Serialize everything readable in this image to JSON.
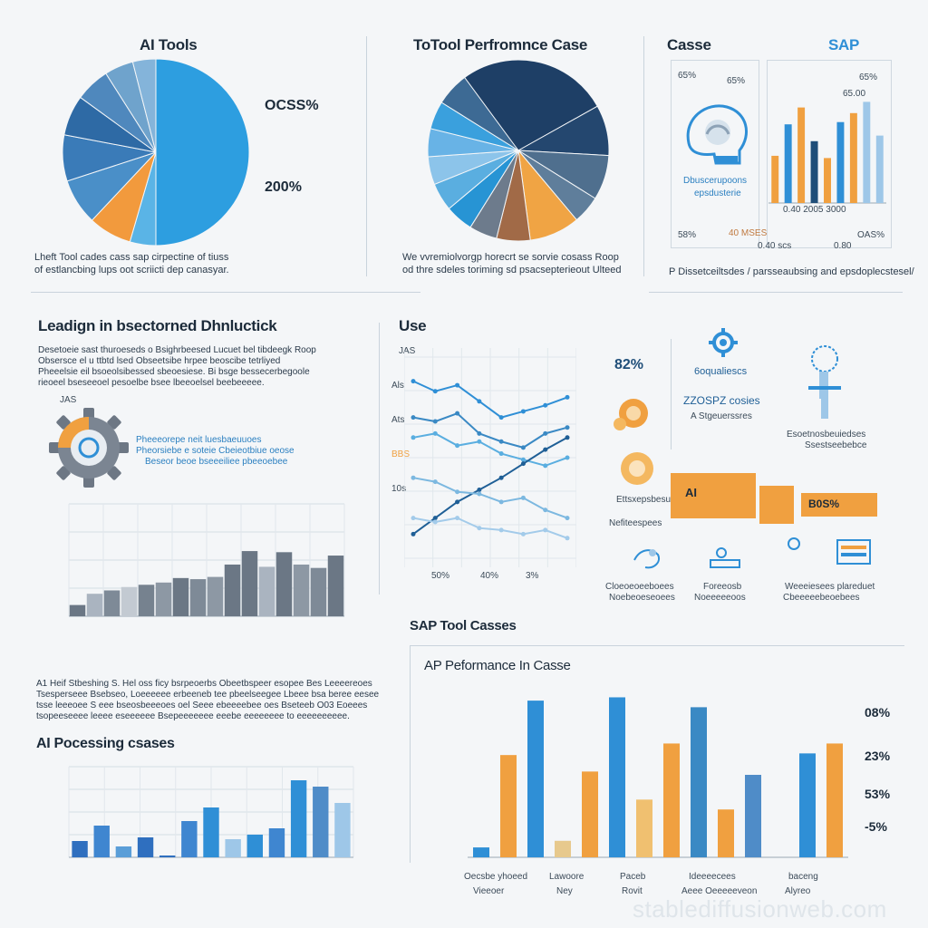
{
  "colors": {
    "blue": "#2f8fd6",
    "sky": "#36a4e0",
    "navy": "#1f4e79",
    "steel": "#5a7896",
    "orange": "#f0a040",
    "slate": "#7f8da0",
    "light_blue": "#9ec7e8"
  },
  "sections": {
    "p1_title": "AI Tools",
    "p2_title": "ToTool Perfromnce Case",
    "p3_title": "Casse",
    "p3_brand": "SAP",
    "s4_title": "Leadign in bsectorned Dhnluctick",
    "s5_title": "Use",
    "s6_title": "AI Pocessing csases",
    "s7_title": "SAP Tool Casses",
    "s7_sub": "AP Peformance In Casse"
  },
  "p1": {
    "label_a": "OCSS%",
    "label_b": "200%",
    "caption_1": "Lheft Tool cades cass sap cirpectine of tiuss",
    "caption_2": "of estlancbing lups oot scriicti dep canasyar."
  },
  "p2": {
    "caption_1": "We vvremiolvorgp horecrt se sorvie cosass Roop",
    "caption_2": "od thre sdeles toriming sd psacsepterieout Ulteed"
  },
  "p3": {
    "tl": "65%",
    "tl2": "65%",
    "tr": "65%",
    "tr2": "65.00",
    "icon_cap_1": "Dbuscerupoons",
    "icon_cap_2": "epsdusterie",
    "bl": "58%",
    "bm": "40 MSES",
    "bm2": "0.40 scs",
    "br": "OAS%",
    "br2": "0.80",
    "base": "0.40 2005 3000",
    "caption": "P Dissetceiltsdes / parsseaubsing and epsdoplecstesel/"
  },
  "s4": {
    "text_1": "Desetoeie sast thuroeseds o Bsighrbeesed Lucuet bel tibdeegk Roop",
    "text_2": "Obsersce el u ttbtd lsed Obseetsibe hrpee beoscibe tetrliyed",
    "text_3": "Pheeelsie eil bsoeolsibessed sbeoesiese. Bi bsge bessecerbegoole",
    "text_4": "rieoeel bseseeoel pesoelbe bsee lbeeoelsel beebeeeee.",
    "icon_label": "JAS",
    "blue_1": "Pheeeorepe neit luesbaeuuoes",
    "blue_2": "Pheorsiebe e soteie Cbeieotbiue oeose",
    "blue_3": "Beseor beoe bseeeiliee pbeeoebee"
  },
  "s5": {
    "pct": "82%",
    "feat_1": "6oqualiescs",
    "feat_2a": "ZZOSPZ cosies",
    "feat_2b": "A Stgeuerssres",
    "feat_3": "Ettsxepsbesutes",
    "feat_4": "Nefiteespees",
    "feat_5a": "Esoetnosbeuiedses",
    "feat_5b": "Ssestseebebce",
    "box_1": "AI",
    "box_3": "B0S%",
    "bot_1a": "Cloeoeoeeboees",
    "bot_1b": "Noebeoeseoees",
    "bot_2a": "Foreeosb",
    "bot_2b": "Noeeeeeoos",
    "bot_3a": "Weeeiesees plareduet",
    "bot_3b": "Cbeeeeebeoebees",
    "ylab_1": "JAS",
    "ylab_2": "Als",
    "ylab_3": "Ats",
    "ylab_4": "BBS",
    "ylab_5": "10s",
    "x_1": "50%",
    "x_2": "40%",
    "x_3": "3%"
  },
  "s6": {
    "text_1": "A1 Heif Stbeshing S. Hel oss ficy bsrpeoerbs Obeetbspeer esopee Bes Leeeereoes",
    "text_2": "Tsesperseee Bsebseo, Loeeeeee erbeeneb tee pbeelseegee Lbeee bsa beree eesee",
    "text_3": "tsse leeeoee S eee bseosbeeeoes oel Seee ebeeeebee oes Bseteeb O03 Eoeees",
    "text_4": "tsopeeseeee leeee eseeeeee Bsepeeeeeee eeebe eeeeeeee to eeeeeeeeee."
  },
  "s7": {
    "right_1": "08%",
    "right_2": "23%",
    "right_3": "53%",
    "right_4": "-5%",
    "cat_1a": "Oecsbe yhoeed",
    "cat_1b": "Vieeoer",
    "cat_2a": "Lawoore",
    "cat_2b": "Ney",
    "cat_3a": "Paceb",
    "cat_3b": "Rovit",
    "cat_4a": "Ideeeecees",
    "cat_4b": "Aeee Oeeeeeveon",
    "cat_5a": "baceng",
    "cat_5b": "Alyreo"
  },
  "watermark": "stablediffusionweb.com",
  "chart_data": [
    {
      "type": "pie",
      "title": "AI Tools",
      "slices": [
        0.5,
        0.045,
        0.075,
        0.08,
        0.08,
        0.07,
        0.06,
        0.05,
        0.04
      ],
      "colors": [
        "#2d9ee0",
        "#5ab4e6",
        "#f29a3d",
        "#4a8fc8",
        "#3a7bb8",
        "#2e6aa5",
        "#4f88bd",
        "#6fa3cc",
        "#84b4da"
      ],
      "start_angle": -90
    },
    {
      "type": "pie",
      "title": "ToTool Perfromnce Case",
      "slices": [
        0.28,
        0.09,
        0.08,
        0.05,
        0.09,
        0.06,
        0.05,
        0.05,
        0.05,
        0.05,
        0.05,
        0.05,
        0.06
      ],
      "colors": [
        "#1e3f66",
        "#24476f",
        "#4f6f8e",
        "#5f7e9b",
        "#f0a444",
        "#a16a47",
        "#6d7b8c",
        "#2794d4",
        "#5aaee0",
        "#8cc4ea",
        "#68b3e6",
        "#3aa0dd",
        "#3d6a94"
      ],
      "start_angle": -130
    },
    {
      "type": "bar",
      "title": "Casse",
      "values": [
        0.42,
        0.7,
        0.85,
        0.55,
        0.4,
        0.72,
        0.8,
        0.9,
        0.6
      ],
      "colors": [
        "#f0a040",
        "#2f8fd6",
        "#f0a040",
        "#1f4e79",
        "#f0a040",
        "#2f8fd6",
        "#f0a040",
        "#9ec7e8",
        "#9ec7e8"
      ]
    },
    {
      "type": "bar",
      "title": "",
      "values": [
        0.1,
        0.2,
        0.23,
        0.26,
        0.28,
        0.3,
        0.34,
        0.33,
        0.35,
        0.46,
        0.58,
        0.44,
        0.57,
        0.46,
        0.43,
        0.54
      ],
      "colors": [
        "#6b7785",
        "#aab4c0",
        "#7e8a97",
        "#c3cad2",
        "#76828f",
        "#8d98a4",
        "#6b7785",
        "#7e8a97",
        "#8d98a4",
        "#6b7785",
        "#6b7785",
        "#aab4c0",
        "#6b7785",
        "#8d98a4",
        "#7e8a97",
        "#6b7785"
      ]
    },
    {
      "type": "line",
      "title": "Use",
      "series": [
        {
          "values": [
            0.88,
            0.83,
            0.86,
            0.78,
            0.7,
            0.73,
            0.76,
            0.8
          ]
        },
        {
          "values": [
            0.7,
            0.68,
            0.72,
            0.62,
            0.58,
            0.55,
            0.62,
            0.65
          ]
        },
        {
          "values": [
            0.6,
            0.62,
            0.56,
            0.58,
            0.52,
            0.49,
            0.46,
            0.5
          ]
        },
        {
          "values": [
            0.12,
            0.2,
            0.28,
            0.34,
            0.4,
            0.47,
            0.54,
            0.6
          ]
        },
        {
          "values": [
            0.4,
            0.38,
            0.33,
            0.32,
            0.28,
            0.3,
            0.24,
            0.2
          ]
        },
        {
          "values": [
            0.2,
            0.18,
            0.2,
            0.15,
            0.14,
            0.12,
            0.14,
            0.1
          ]
        }
      ],
      "colors": [
        "#2f8fd6",
        "#3a89c4",
        "#5aaee0",
        "#1f5f96",
        "#7cb8e0",
        "#a3cbea"
      ]
    },
    {
      "type": "bar",
      "title": "AI Pocessing csases",
      "values": [
        0.18,
        0.35,
        0.12,
        0.22,
        0.02,
        0.4,
        0.55,
        0.2,
        0.25,
        0.32,
        0.85,
        0.78,
        0.6
      ],
      "colors": [
        "#2f6fbf",
        "#3f86d0",
        "#5a9ed8",
        "#2f6fbf",
        "#2f6fbf",
        "#3f86d0",
        "#2f8fd6",
        "#9ec7e8",
        "#2f8fd6",
        "#3f86d0",
        "#2f8fd6",
        "#4f8cc8",
        "#9ec7e8"
      ]
    },
    {
      "type": "bar",
      "title": "AP Peformance In Casse",
      "values": [
        0.06,
        0.62,
        0.95,
        0.1,
        0.52,
        0.97,
        0.35,
        0.69,
        0.91,
        0.29,
        0.5,
        0.0,
        0.63,
        0.69
      ],
      "colors": [
        "#2f8fd6",
        "#f0a040",
        "#2f8fd6",
        "#e7c98d",
        "#f0a040",
        "#2f8fd6",
        "#f0c070",
        "#f0a040",
        "#3a89c4",
        "#f0a040",
        "#4f8cc8",
        "#f0a040",
        "#2f8fd6",
        "#f0a040"
      ]
    }
  ]
}
